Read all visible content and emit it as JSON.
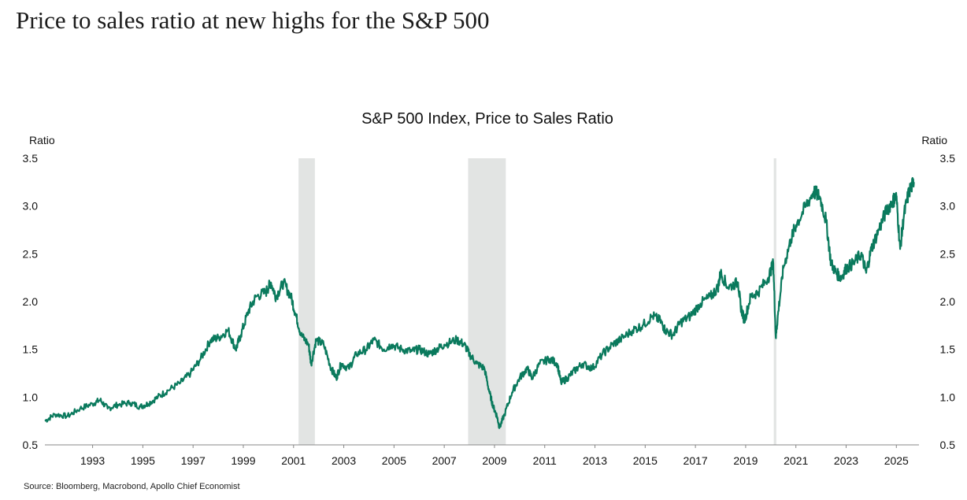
{
  "headline": "Price to sales ratio at new highs for the S&P 500",
  "source": "Source: Bloomberg, Macrobond, Apollo Chief Economist",
  "chart_data": {
    "type": "line",
    "title": "S&P 500 Index, Price to Sales Ratio",
    "ylabel_left": "Ratio",
    "ylabel_right": "Ratio",
    "xlim": [
      1991.1,
      2025.9
    ],
    "ylim": [
      0.5,
      3.5
    ],
    "y_ticks": [
      "0.5",
      "1.0",
      "1.5",
      "2.0",
      "2.5",
      "3.0",
      "3.5"
    ],
    "x_ticks": [
      "1993",
      "1995",
      "1997",
      "1999",
      "2001",
      "2003",
      "2005",
      "2007",
      "2009",
      "2011",
      "2013",
      "2015",
      "2017",
      "2019",
      "2021",
      "2023",
      "2025"
    ],
    "line_color": "#0a7a5d",
    "recession_color": "#e2e4e3",
    "recessions": [
      [
        2001.2,
        2001.85
      ],
      [
        2007.95,
        2009.45
      ],
      [
        2020.12,
        2020.22
      ]
    ],
    "grid": false,
    "legend": "none",
    "series": [
      {
        "x": [
          1991.1,
          1991.5,
          1992.0,
          1992.5,
          1993.0,
          1993.3,
          1993.6,
          1994.0,
          1994.5,
          1994.9,
          1995.2,
          1995.6,
          1996.0,
          1996.5,
          1996.9,
          1997.3,
          1997.7,
          1998.0,
          1998.4,
          1998.7,
          1998.9,
          1999.2,
          1999.5,
          1999.9,
          2000.1,
          2000.3,
          2000.6,
          2000.9,
          2001.1,
          2001.3,
          2001.6,
          2001.7,
          2001.9,
          2002.2,
          2002.5,
          2002.7,
          2002.9,
          2003.2,
          2003.5,
          2003.9,
          2004.2,
          2004.6,
          2004.9,
          2005.3,
          2005.7,
          2006.0,
          2006.4,
          2006.7,
          2007.0,
          2007.5,
          2007.8,
          2008.0,
          2008.3,
          2008.6,
          2008.8,
          2008.95,
          2009.1,
          2009.2,
          2009.4,
          2009.7,
          2010.0,
          2010.3,
          2010.5,
          2010.8,
          2011.2,
          2011.5,
          2011.65,
          2011.9,
          2012.2,
          2012.5,
          2012.9,
          2013.3,
          2013.7,
          2014.0,
          2014.5,
          2014.9,
          2015.3,
          2015.6,
          2015.8,
          2016.1,
          2016.4,
          2016.8,
          2017.2,
          2017.6,
          2017.9,
          2018.0,
          2018.3,
          2018.7,
          2018.8,
          2018.95,
          2019.2,
          2019.5,
          2019.9,
          2020.1,
          2020.2,
          2020.3,
          2020.5,
          2020.8,
          2021.0,
          2021.4,
          2021.7,
          2021.95,
          2022.2,
          2022.4,
          2022.6,
          2022.8,
          2023.0,
          2023.3,
          2023.6,
          2023.8,
          2024.0,
          2024.3,
          2024.6,
          2024.85,
          2025.0,
          2025.15,
          2025.3,
          2025.5,
          2025.7
        ],
        "y": [
          0.75,
          0.82,
          0.8,
          0.88,
          0.93,
          0.97,
          0.88,
          0.92,
          0.94,
          0.9,
          0.93,
          1.0,
          1.07,
          1.15,
          1.25,
          1.4,
          1.6,
          1.62,
          1.7,
          1.5,
          1.65,
          1.9,
          2.05,
          2.1,
          2.2,
          2.05,
          2.2,
          2.05,
          1.85,
          1.65,
          1.55,
          1.35,
          1.6,
          1.55,
          1.3,
          1.2,
          1.35,
          1.3,
          1.45,
          1.5,
          1.6,
          1.5,
          1.55,
          1.5,
          1.48,
          1.5,
          1.45,
          1.5,
          1.55,
          1.6,
          1.55,
          1.45,
          1.35,
          1.3,
          1.05,
          0.9,
          0.8,
          0.68,
          0.82,
          1.05,
          1.2,
          1.3,
          1.2,
          1.35,
          1.4,
          1.35,
          1.15,
          1.2,
          1.28,
          1.35,
          1.3,
          1.45,
          1.55,
          1.6,
          1.7,
          1.75,
          1.85,
          1.8,
          1.7,
          1.65,
          1.78,
          1.85,
          1.98,
          2.05,
          2.15,
          2.3,
          2.15,
          2.2,
          1.95,
          1.8,
          2.05,
          2.1,
          2.25,
          2.4,
          1.62,
          1.9,
          2.35,
          2.65,
          2.8,
          3.0,
          3.15,
          3.1,
          2.85,
          2.4,
          2.3,
          2.25,
          2.35,
          2.4,
          2.5,
          2.3,
          2.55,
          2.75,
          2.95,
          3.05,
          3.1,
          2.55,
          2.9,
          3.15,
          3.25
        ]
      }
    ]
  }
}
